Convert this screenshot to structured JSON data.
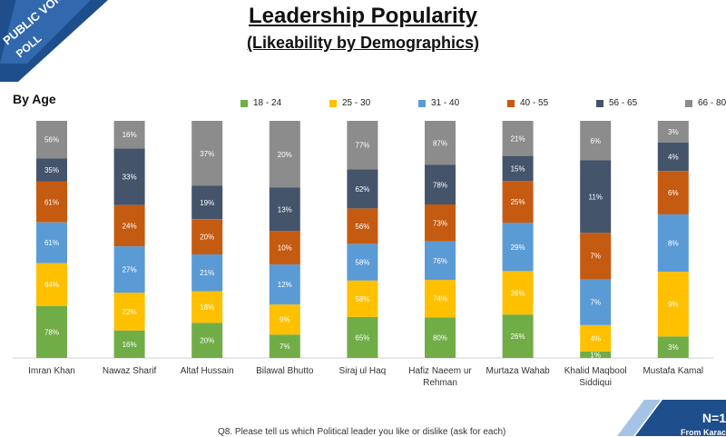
{
  "header": {
    "title": "Leadership Popularity",
    "subtitle": "(Likeability by Demographics)",
    "section": "By Age"
  },
  "logo": {
    "text": "PUBLIC VOICE POLL"
  },
  "footnote": "Q8. Please tell us which Political leader you like or dislike (ask for each)",
  "badge": {
    "n_text": "N=1",
    "sub_text": "From Karac"
  },
  "chart_data": {
    "type": "bar",
    "stacked": true,
    "normalized": true,
    "categories": [
      "Imran Khan",
      "Nawaz Sharif",
      "Altaf Hussain",
      "Bilawal Bhutto",
      "Siraj ul Haq",
      "Hafiz Naeem ur Rehman",
      "Murtaza Wahab",
      "Khalid Maqbool Siddiqui",
      "Mustafa Kamal"
    ],
    "category_lines": [
      [
        "Imran Khan"
      ],
      [
        "Nawaz Sharif"
      ],
      [
        "Altaf Hussain"
      ],
      [
        "Bilawal Bhutto"
      ],
      [
        "Siraj ul Haq"
      ],
      [
        "Hafiz Naeem ur",
        "Rehman"
      ],
      [
        "Murtaza Wahab"
      ],
      [
        "Khalid Maqbool",
        "Siddiqui"
      ],
      [
        "Mustafa Kamal"
      ]
    ],
    "series": [
      {
        "name": "18 - 24",
        "color": "#70ad47",
        "values": [
          78,
          16,
          20,
          7,
          65,
          80,
          26,
          1,
          3
        ]
      },
      {
        "name": "25 - 30",
        "color": "#ffc000",
        "values": [
          64,
          22,
          18,
          9,
          58,
          74,
          26,
          4,
          9
        ]
      },
      {
        "name": "31 - 40",
        "color": "#5b9bd5",
        "values": [
          61,
          27,
          21,
          12,
          58,
          76,
          29,
          7,
          8
        ]
      },
      {
        "name": "40 - 55",
        "color": "#c55a11",
        "values": [
          61,
          24,
          20,
          10,
          56,
          73,
          25,
          7,
          6
        ]
      },
      {
        "name": "56 - 65",
        "color": "#44546a",
        "values": [
          35,
          33,
          19,
          13,
          62,
          78,
          15,
          11,
          4
        ]
      },
      {
        "name": "66 - 80",
        "color": "#8c8c8c",
        "values": [
          56,
          16,
          37,
          20,
          77,
          87,
          21,
          6,
          3
        ]
      }
    ],
    "value_suffix": "%",
    "legend": "top",
    "grid": false
  }
}
